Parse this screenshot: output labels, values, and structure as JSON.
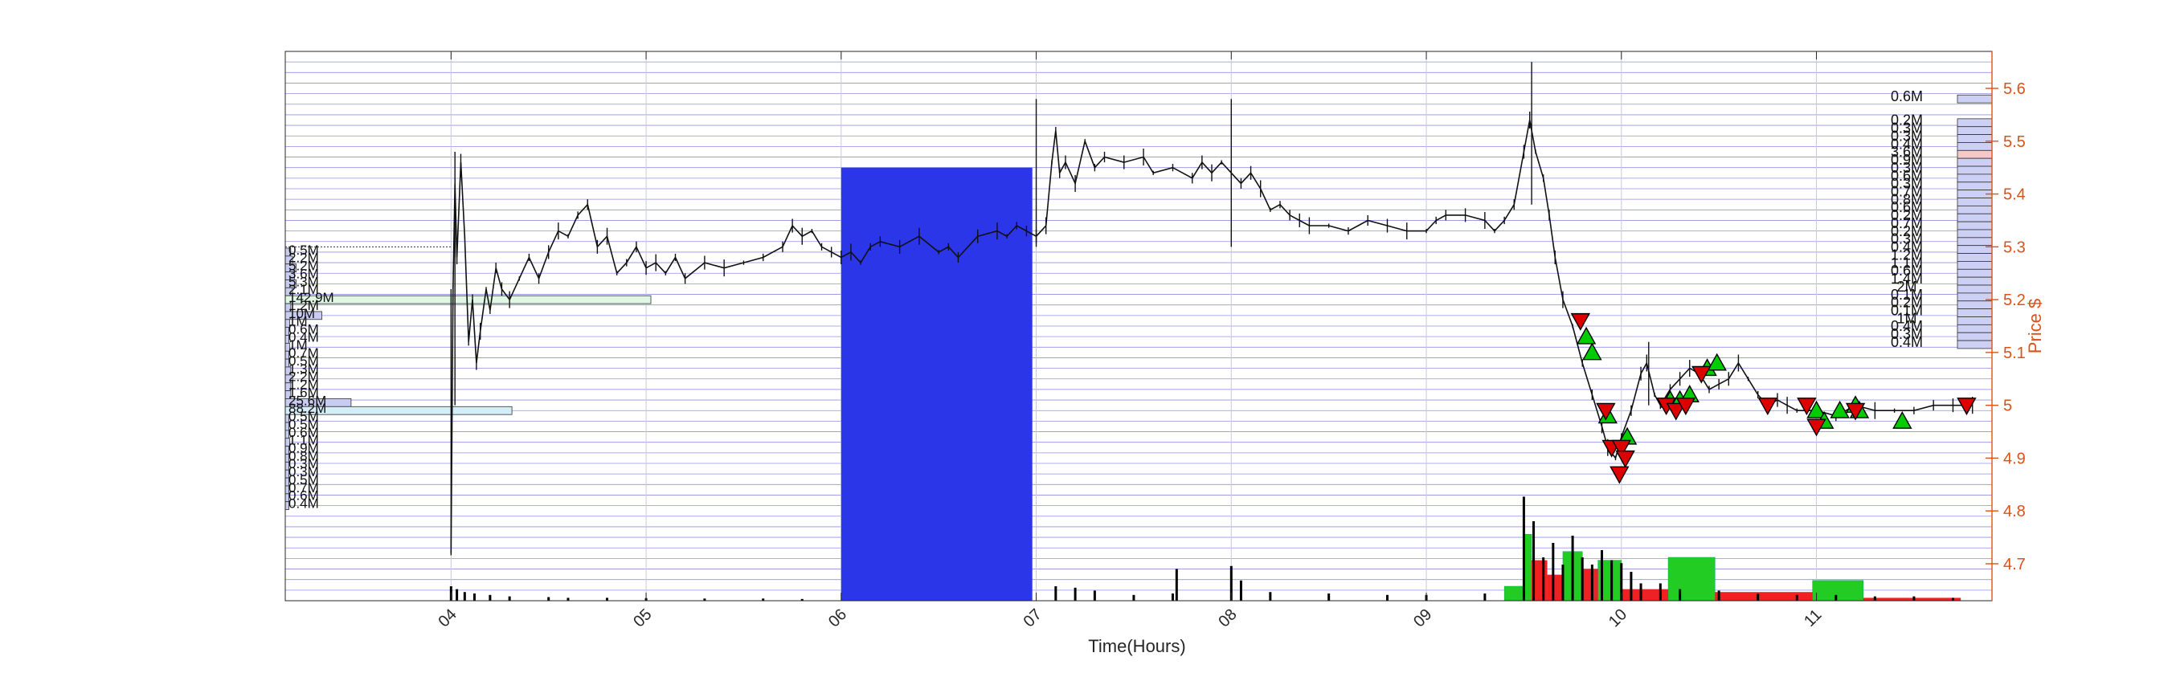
{
  "chart_data": {
    "type": "candlestick",
    "xlabel": "Time(Hours)",
    "ylabel": "Price $",
    "x_ticks": [
      "04",
      "05",
      "06",
      "07",
      "08",
      "09",
      "10",
      "11"
    ],
    "xlim": [
      3.15,
      11.9
    ],
    "y_ticks": [
      4.7,
      4.8,
      4.9,
      5,
      5.1,
      5.2,
      5.3,
      5.4,
      5.5,
      5.6
    ],
    "ylim": [
      4.63,
      5.67
    ],
    "grid": true,
    "colors": {
      "axis_right": "#d95319",
      "grid_horizontal": "#6b6bdc",
      "grid_vertical": "#c8c8dc",
      "shaded_region": "#2a36e8",
      "buy_marker": "#00cc00",
      "sell_marker": "#dd0000",
      "volume_buy": "#22cc22",
      "volume_sell": "#ee2222",
      "volume_black": "#000000",
      "profile_left_highlight_green": "#dff7e3",
      "profile_left_highlight_cyan": "#d4eef8",
      "profile_right_fill": "#ccd0f4",
      "profile_right_highlight": "#f6c9c9"
    },
    "shaded_region": {
      "x_start": 6.0,
      "x_end": 6.98,
      "y_top": 5.45
    },
    "reference_line": {
      "y": 5.3,
      "x_start": 3.15,
      "x_end": 4.0
    },
    "price_path": [
      [
        4.0,
        4.72
      ],
      [
        4.01,
        5.22
      ],
      [
        4.02,
        5.42
      ],
      [
        4.03,
        5.28
      ],
      [
        4.05,
        5.46
      ],
      [
        4.07,
        5.32
      ],
      [
        4.09,
        5.12
      ],
      [
        4.11,
        5.2
      ],
      [
        4.13,
        5.08
      ],
      [
        4.15,
        5.14
      ],
      [
        4.18,
        5.22
      ],
      [
        4.2,
        5.18
      ],
      [
        4.23,
        5.26
      ],
      [
        4.26,
        5.22
      ],
      [
        4.3,
        5.2
      ],
      [
        4.35,
        5.24
      ],
      [
        4.4,
        5.28
      ],
      [
        4.45,
        5.24
      ],
      [
        4.5,
        5.29
      ],
      [
        4.55,
        5.33
      ],
      [
        4.6,
        5.32
      ],
      [
        4.65,
        5.36
      ],
      [
        4.7,
        5.38
      ],
      [
        4.75,
        5.3
      ],
      [
        4.8,
        5.32
      ],
      [
        4.85,
        5.25
      ],
      [
        4.9,
        5.27
      ],
      [
        4.95,
        5.3
      ],
      [
        5.0,
        5.26
      ],
      [
        5.05,
        5.27
      ],
      [
        5.1,
        5.25
      ],
      [
        5.15,
        5.28
      ],
      [
        5.2,
        5.24
      ],
      [
        5.3,
        5.27
      ],
      [
        5.4,
        5.26
      ],
      [
        5.5,
        5.27
      ],
      [
        5.6,
        5.28
      ],
      [
        5.7,
        5.3
      ],
      [
        5.75,
        5.34
      ],
      [
        5.8,
        5.32
      ],
      [
        5.85,
        5.33
      ],
      [
        5.9,
        5.3
      ],
      [
        5.95,
        5.29
      ],
      [
        6.0,
        5.28
      ],
      [
        6.05,
        5.29
      ],
      [
        6.1,
        5.27
      ],
      [
        6.15,
        5.3
      ],
      [
        6.2,
        5.31
      ],
      [
        6.3,
        5.3
      ],
      [
        6.4,
        5.32
      ],
      [
        6.5,
        5.29
      ],
      [
        6.55,
        5.3
      ],
      [
        6.6,
        5.28
      ],
      [
        6.7,
        5.32
      ],
      [
        6.8,
        5.33
      ],
      [
        6.85,
        5.32
      ],
      [
        6.9,
        5.34
      ],
      [
        6.95,
        5.33
      ],
      [
        7.0,
        5.32
      ],
      [
        7.05,
        5.34
      ],
      [
        7.08,
        5.46
      ],
      [
        7.1,
        5.52
      ],
      [
        7.12,
        5.44
      ],
      [
        7.15,
        5.46
      ],
      [
        7.2,
        5.42
      ],
      [
        7.25,
        5.5
      ],
      [
        7.3,
        5.45
      ],
      [
        7.35,
        5.47
      ],
      [
        7.45,
        5.46
      ],
      [
        7.55,
        5.47
      ],
      [
        7.6,
        5.44
      ],
      [
        7.7,
        5.45
      ],
      [
        7.8,
        5.43
      ],
      [
        7.85,
        5.46
      ],
      [
        7.9,
        5.44
      ],
      [
        7.95,
        5.46
      ],
      [
        8.0,
        5.44
      ],
      [
        8.05,
        5.42
      ],
      [
        8.1,
        5.44
      ],
      [
        8.15,
        5.41
      ],
      [
        8.2,
        5.37
      ],
      [
        8.25,
        5.38
      ],
      [
        8.3,
        5.36
      ],
      [
        8.35,
        5.35
      ],
      [
        8.4,
        5.34
      ],
      [
        8.5,
        5.34
      ],
      [
        8.6,
        5.33
      ],
      [
        8.7,
        5.35
      ],
      [
        8.8,
        5.34
      ],
      [
        8.9,
        5.33
      ],
      [
        9.0,
        5.33
      ],
      [
        9.05,
        5.35
      ],
      [
        9.1,
        5.36
      ],
      [
        9.2,
        5.36
      ],
      [
        9.3,
        5.35
      ],
      [
        9.35,
        5.33
      ],
      [
        9.4,
        5.35
      ],
      [
        9.45,
        5.38
      ],
      [
        9.5,
        5.48
      ],
      [
        9.53,
        5.54
      ],
      [
        9.56,
        5.48
      ],
      [
        9.6,
        5.43
      ],
      [
        9.63,
        5.36
      ],
      [
        9.66,
        5.28
      ],
      [
        9.7,
        5.2
      ],
      [
        9.75,
        5.15
      ],
      [
        9.8,
        5.08
      ],
      [
        9.85,
        5.02
      ],
      [
        9.9,
        4.96
      ],
      [
        9.93,
        4.92
      ],
      [
        9.97,
        4.9
      ],
      [
        10.0,
        4.94
      ],
      [
        10.05,
        4.99
      ],
      [
        10.1,
        5.06
      ],
      [
        10.13,
        5.08
      ],
      [
        10.17,
        5.02
      ],
      [
        10.2,
        5.0
      ],
      [
        10.25,
        5.03
      ],
      [
        10.3,
        5.05
      ],
      [
        10.35,
        5.07
      ],
      [
        10.4,
        5.06
      ],
      [
        10.45,
        5.03
      ],
      [
        10.5,
        5.04
      ],
      [
        10.55,
        5.05
      ],
      [
        10.6,
        5.08
      ],
      [
        10.65,
        5.05
      ],
      [
        10.7,
        5.02
      ],
      [
        10.75,
        5.0
      ],
      [
        10.8,
        5.01
      ],
      [
        10.85,
        5.0
      ],
      [
        10.9,
        4.99
      ],
      [
        11.0,
        4.99
      ],
      [
        11.1,
        4.98
      ],
      [
        11.2,
        5.0
      ],
      [
        11.3,
        4.99
      ],
      [
        11.4,
        4.99
      ],
      [
        11.5,
        4.99
      ],
      [
        11.6,
        5.0
      ],
      [
        11.7,
        5.0
      ],
      [
        11.8,
        5.0
      ]
    ],
    "price_spikes": [
      [
        4.0,
        4.72,
        5.22
      ],
      [
        4.02,
        5.0,
        5.48
      ],
      [
        7.0,
        5.3,
        5.58
      ],
      [
        8.0,
        5.3,
        5.58
      ],
      [
        9.54,
        5.38,
        5.65
      ],
      [
        10.14,
        5.0,
        5.12
      ]
    ],
    "buy_markers": [
      [
        9.82,
        5.13
      ],
      [
        9.85,
        5.1
      ],
      [
        9.93,
        4.98
      ],
      [
        10.03,
        4.94
      ],
      [
        10.25,
        5.01
      ],
      [
        10.3,
        5.01
      ],
      [
        10.35,
        5.02
      ],
      [
        10.44,
        5.07
      ],
      [
        10.49,
        5.08
      ],
      [
        11.0,
        4.99
      ],
      [
        11.04,
        4.97
      ],
      [
        11.12,
        4.99
      ],
      [
        11.2,
        5.0
      ],
      [
        11.22,
        4.99
      ],
      [
        11.44,
        4.97
      ]
    ],
    "sell_markers": [
      [
        9.79,
        5.16
      ],
      [
        9.92,
        4.99
      ],
      [
        9.95,
        4.92
      ],
      [
        10.0,
        4.92
      ],
      [
        10.02,
        4.9
      ],
      [
        9.99,
        4.87
      ],
      [
        10.23,
        5.0
      ],
      [
        10.28,
        4.99
      ],
      [
        10.33,
        5.0
      ],
      [
        10.41,
        5.06
      ],
      [
        10.75,
        5.0
      ],
      [
        10.95,
        5.0
      ],
      [
        11.0,
        4.96
      ],
      [
        11.2,
        4.99
      ],
      [
        11.77,
        5.0
      ]
    ],
    "volume_bars_black": [
      [
        4.0,
        0.1
      ],
      [
        4.03,
        0.08
      ],
      [
        4.07,
        0.06
      ],
      [
        4.12,
        0.05
      ],
      [
        4.2,
        0.04
      ],
      [
        4.3,
        0.03
      ],
      [
        4.5,
        0.025
      ],
      [
        4.6,
        0.02
      ],
      [
        4.8,
        0.02
      ],
      [
        5.0,
        0.018
      ],
      [
        5.3,
        0.015
      ],
      [
        5.6,
        0.015
      ],
      [
        5.8,
        0.012
      ],
      [
        7.1,
        0.1
      ],
      [
        7.2,
        0.09
      ],
      [
        7.3,
        0.07
      ],
      [
        7.5,
        0.04
      ],
      [
        7.7,
        0.05
      ],
      [
        7.72,
        0.22
      ],
      [
        8.0,
        0.24
      ],
      [
        8.05,
        0.14
      ],
      [
        8.2,
        0.06
      ],
      [
        8.5,
        0.05
      ],
      [
        8.8,
        0.04
      ],
      [
        9.0,
        0.04
      ],
      [
        9.3,
        0.05
      ],
      [
        9.5,
        0.72
      ],
      [
        9.55,
        0.55
      ],
      [
        9.6,
        0.3
      ],
      [
        9.65,
        0.4
      ],
      [
        9.7,
        0.25
      ],
      [
        9.75,
        0.45
      ],
      [
        9.8,
        0.3
      ],
      [
        9.85,
        0.25
      ],
      [
        9.9,
        0.35
      ],
      [
        9.95,
        0.28
      ],
      [
        10.0,
        0.26
      ],
      [
        10.05,
        0.2
      ],
      [
        10.1,
        0.12
      ],
      [
        10.2,
        0.12
      ],
      [
        10.3,
        0.08
      ],
      [
        10.5,
        0.07
      ],
      [
        10.7,
        0.05
      ],
      [
        10.9,
        0.04
      ],
      [
        11.1,
        0.04
      ],
      [
        11.3,
        0.03
      ],
      [
        11.5,
        0.03
      ],
      [
        11.7,
        0.02
      ]
    ],
    "volume_blocks_green": [
      [
        9.4,
        9.5,
        0.1
      ],
      [
        9.5,
        9.54,
        0.46
      ],
      [
        9.7,
        9.8,
        0.34
      ],
      [
        9.88,
        10.0,
        0.28
      ],
      [
        10.24,
        10.48,
        0.3
      ],
      [
        10.98,
        11.24,
        0.14
      ]
    ],
    "volume_blocks_red": [
      [
        9.54,
        9.62,
        0.28
      ],
      [
        9.62,
        9.7,
        0.18
      ],
      [
        9.8,
        9.88,
        0.22
      ],
      [
        10.0,
        10.24,
        0.08
      ],
      [
        10.48,
        10.98,
        0.06
      ],
      [
        11.24,
        11.74,
        0.02
      ]
    ],
    "volume_profile_left": [
      {
        "label": "0.5M",
        "price": 5.29,
        "width": 0.015
      },
      {
        "label": "2.2M",
        "price": 5.275,
        "width": 0.02
      },
      {
        "label": "5.2M",
        "price": 5.26,
        "width": 0.03
      },
      {
        "label": "3.6M",
        "price": 5.245,
        "width": 0.025
      },
      {
        "label": "5.3M",
        "price": 5.23,
        "width": 0.03
      },
      {
        "label": "2.1M",
        "price": 5.215,
        "width": 0.02
      },
      {
        "label": "142.9M",
        "price": 5.2,
        "width": 1.0,
        "highlight": "green"
      },
      {
        "label": "1.2M",
        "price": 5.185,
        "width": 0.015
      },
      {
        "label": "10M",
        "price": 5.17,
        "width": 0.1
      },
      {
        "label": "1M",
        "price": 5.155,
        "width": 0.012
      },
      {
        "label": "0.6M",
        "price": 5.14,
        "width": 0.01
      },
      {
        "label": "0.4M",
        "price": 5.125,
        "width": 0.01
      },
      {
        "label": "1M",
        "price": 5.11,
        "width": 0.012
      },
      {
        "label": "0.7M",
        "price": 5.095,
        "width": 0.01
      },
      {
        "label": "0.5M",
        "price": 5.08,
        "width": 0.01
      },
      {
        "label": "1.3M",
        "price": 5.065,
        "width": 0.015
      },
      {
        "label": "2.2M",
        "price": 5.05,
        "width": 0.02
      },
      {
        "label": "1.2M",
        "price": 5.035,
        "width": 0.015
      },
      {
        "label": "1.6M",
        "price": 5.02,
        "width": 0.015
      },
      {
        "label": "25.6M",
        "price": 5.005,
        "width": 0.18
      },
      {
        "label": "88.2M",
        "price": 4.99,
        "width": 0.62,
        "highlight": "cyan"
      },
      {
        "label": "0.5M",
        "price": 4.975,
        "width": 0.01
      },
      {
        "label": "0.5M",
        "price": 4.96,
        "width": 0.01
      },
      {
        "label": "0.6M",
        "price": 4.945,
        "width": 0.01
      },
      {
        "label": "1.1M",
        "price": 4.93,
        "width": 0.012
      },
      {
        "label": "0.9M",
        "price": 4.915,
        "width": 0.01
      },
      {
        "label": "0.8M",
        "price": 4.9,
        "width": 0.01
      },
      {
        "label": "0.3M",
        "price": 4.885,
        "width": 0.01
      },
      {
        "label": "0.3M",
        "price": 4.87,
        "width": 0.01
      },
      {
        "label": "0.5M",
        "price": 4.855,
        "width": 0.01
      },
      {
        "label": "0.7M",
        "price": 4.84,
        "width": 0.01
      },
      {
        "label": "0.6M",
        "price": 4.825,
        "width": 0.01
      },
      {
        "label": "0.4M",
        "price": 4.81,
        "width": 0.01
      }
    ],
    "volume_profile_right": [
      {
        "label": "0.6M",
        "price": 5.58
      },
      {
        "label": "0.2M",
        "price": 5.535
      },
      {
        "label": "0.3M",
        "price": 5.52
      },
      {
        "label": "0.3M",
        "price": 5.505
      },
      {
        "label": "0.4M",
        "price": 5.49
      },
      {
        "label": "3.6M",
        "price": 5.475,
        "highlight": true
      },
      {
        "label": "0.9M",
        "price": 5.46
      },
      {
        "label": "0.3M",
        "price": 5.445
      },
      {
        "label": "0.6M",
        "price": 5.43
      },
      {
        "label": "0.3M",
        "price": 5.415
      },
      {
        "label": "0.7M",
        "price": 5.4
      },
      {
        "label": "0.8M",
        "price": 5.385
      },
      {
        "label": "0.6M",
        "price": 5.37
      },
      {
        "label": "0.2M",
        "price": 5.355
      },
      {
        "label": "0.7M",
        "price": 5.34
      },
      {
        "label": "0.2M",
        "price": 5.325
      },
      {
        "label": "0.3M",
        "price": 5.31
      },
      {
        "label": "0.4M",
        "price": 5.295
      },
      {
        "label": "1.2M",
        "price": 5.28
      },
      {
        "label": "1.1M",
        "price": 5.265
      },
      {
        "label": "0.6M",
        "price": 5.25
      },
      {
        "label": "1.4M",
        "price": 5.235
      },
      {
        "label": "2M",
        "price": 5.22
      },
      {
        "label": "0.1M",
        "price": 5.205
      },
      {
        "label": "0.2M",
        "price": 5.19
      },
      {
        "label": "0.1M",
        "price": 5.175
      },
      {
        "label": "1M",
        "price": 5.16
      },
      {
        "label": "0.4M",
        "price": 5.145
      },
      {
        "label": "0.3M",
        "price": 5.13
      },
      {
        "label": "0.4M",
        "price": 5.115
      }
    ]
  }
}
